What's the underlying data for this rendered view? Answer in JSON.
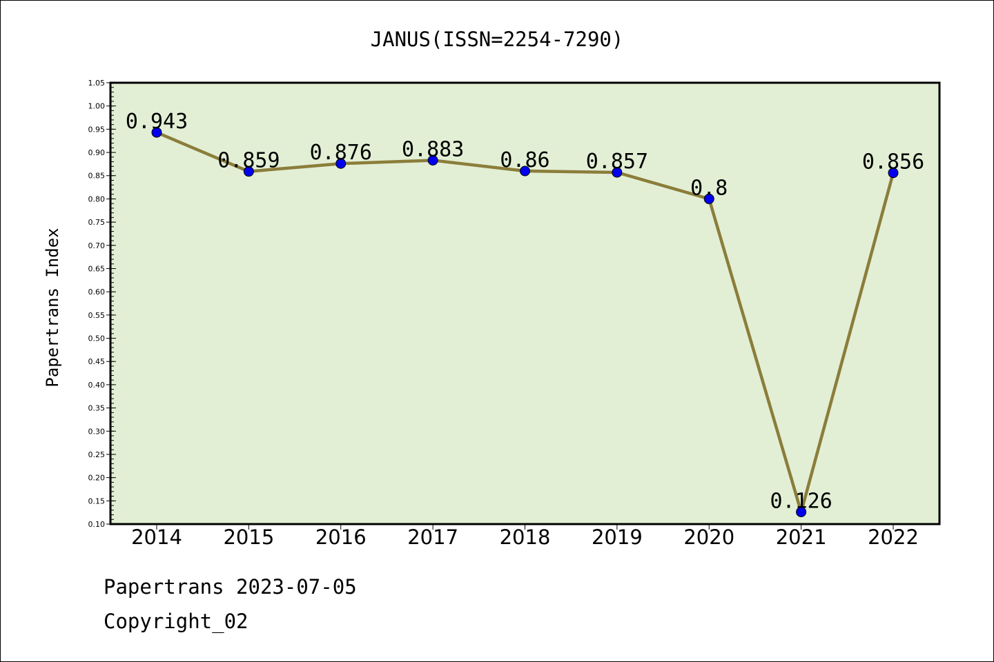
{
  "chart_data": {
    "type": "line",
    "title": "JANUS(ISSN=2254-7290)",
    "xlabel": "",
    "ylabel": "Papertrans Index",
    "categories": [
      "2014",
      "2015",
      "2016",
      "2017",
      "2018",
      "2019",
      "2020",
      "2021",
      "2022"
    ],
    "values": [
      0.943,
      0.859,
      0.876,
      0.883,
      0.86,
      0.857,
      0.8,
      0.126,
      0.856
    ],
    "value_labels": [
      "0.943",
      "0.859",
      "0.876",
      "0.883",
      "0.86",
      "0.857",
      "0.8",
      "0.126",
      "0.856"
    ],
    "ylim": [
      0.1,
      1.05
    ],
    "yticks": [
      "0.10",
      "0.15",
      "0.20",
      "0.25",
      "0.30",
      "0.35",
      "0.40",
      "0.45",
      "0.50",
      "0.55",
      "0.60",
      "0.65",
      "0.70",
      "0.75",
      "0.80",
      "0.85",
      "0.90",
      "0.95",
      "1.00",
      "1.05"
    ],
    "grid": false,
    "legend": "none",
    "colors": {
      "plot_background": "#e2efd5",
      "line": "#8b7d3a",
      "marker": "#0000ee"
    }
  },
  "footer": {
    "date_text": "Papertrans 2023-07-05",
    "copyright_text": "Copyright_02"
  }
}
